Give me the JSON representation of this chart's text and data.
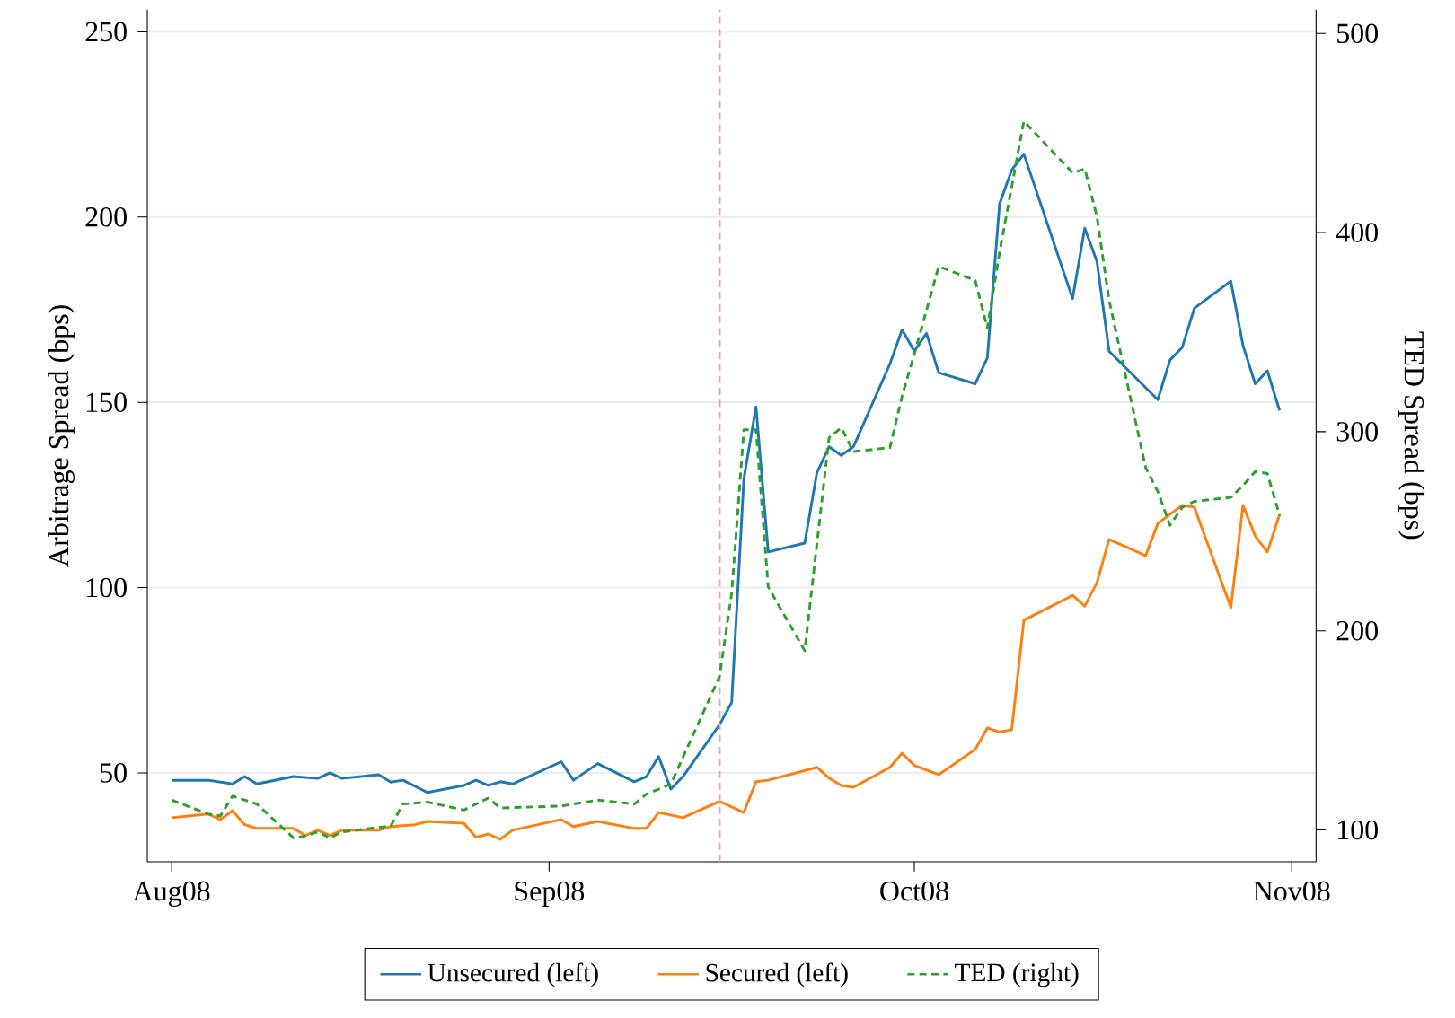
{
  "chart_data": {
    "type": "line",
    "xlim": [
      "2008-07-30",
      "2008-11-03"
    ],
    "xticks": [
      {
        "value": "2008-08-01",
        "label": "Aug08"
      },
      {
        "value": "2008-09-01",
        "label": "Sep08"
      },
      {
        "value": "2008-10-01",
        "label": "Oct08"
      },
      {
        "value": "2008-11-01",
        "label": "Nov08"
      }
    ],
    "ylim": [
      26,
      256
    ],
    "yticks": [
      50,
      100,
      150,
      200,
      250
    ],
    "y2lim": [
      84,
      512
    ],
    "y2ticks": [
      100,
      200,
      300,
      400,
      500
    ],
    "ylabel": "Arbitrage Spread (bps)",
    "y2label": "TED Spread (bps)",
    "grid": "y",
    "legend": "bottom",
    "marker": "none",
    "ref_lines": [
      {
        "axis": "x",
        "value": "2008-09-15",
        "label": null,
        "color": "#e8a0b4",
        "line_style": "dashed"
      }
    ],
    "series": [
      {
        "name": "Unsecured (left)",
        "color": "#1f77b4",
        "line_style": "solid",
        "x": [
          "2008-08-01",
          "2008-08-04",
          "2008-08-06",
          "2008-08-07",
          "2008-08-08",
          "2008-08-11",
          "2008-08-13",
          "2008-08-14",
          "2008-08-15",
          "2008-08-18",
          "2008-08-19",
          "2008-08-20",
          "2008-08-22",
          "2008-08-25",
          "2008-08-26",
          "2008-08-27",
          "2008-08-28",
          "2008-08-29",
          "2008-09-02",
          "2008-09-03",
          "2008-09-05",
          "2008-09-08",
          "2008-09-09",
          "2008-09-10",
          "2008-09-11",
          "2008-09-12",
          "2008-09-15",
          "2008-09-16",
          "2008-09-17",
          "2008-09-18",
          "2008-09-19",
          "2008-09-22",
          "2008-09-23",
          "2008-09-24",
          "2008-09-25",
          "2008-09-26",
          "2008-09-29",
          "2008-09-30",
          "2008-10-01",
          "2008-10-02",
          "2008-10-03",
          "2008-10-06",
          "2008-10-07",
          "2008-10-08",
          "2008-10-09",
          "2008-10-10",
          "2008-10-14",
          "2008-10-15",
          "2008-10-16",
          "2008-10-17",
          "2008-10-21",
          "2008-10-22",
          "2008-10-23",
          "2008-10-24",
          "2008-10-27",
          "2008-10-28",
          "2008-10-29",
          "2008-10-30",
          "2008-10-31"
        ],
        "values": [
          48,
          48,
          47,
          49,
          47,
          49,
          48.5,
          50,
          48.5,
          49.5,
          47.5,
          48,
          44.7,
          46.6,
          48,
          46.6,
          47.6,
          47,
          53,
          48,
          52.5,
          47.6,
          49,
          54.4,
          45.6,
          49,
          63,
          69,
          129.4,
          148.8,
          109.6,
          112,
          131,
          138,
          135.7,
          138,
          160.4,
          169.6,
          163.8,
          168.6,
          158,
          155,
          162,
          203.5,
          212.7,
          217,
          178,
          197,
          188,
          163.8,
          150.7,
          161.4,
          164.8,
          175.4,
          182.7,
          165.3,
          155,
          158.5,
          147.8
        ]
      },
      {
        "name": "Secured (left)",
        "color": "#ff7f0e",
        "line_style": "solid",
        "x": [
          "2008-08-01",
          "2008-08-04",
          "2008-08-05",
          "2008-08-06",
          "2008-08-07",
          "2008-08-08",
          "2008-08-11",
          "2008-08-12",
          "2008-08-13",
          "2008-08-14",
          "2008-08-15",
          "2008-08-18",
          "2008-08-19",
          "2008-08-21",
          "2008-08-22",
          "2008-08-25",
          "2008-08-26",
          "2008-08-27",
          "2008-08-28",
          "2008-08-29",
          "2008-09-02",
          "2008-09-03",
          "2008-09-05",
          "2008-09-08",
          "2008-09-09",
          "2008-09-10",
          "2008-09-12",
          "2008-09-15",
          "2008-09-16",
          "2008-09-17",
          "2008-09-18",
          "2008-09-19",
          "2008-09-23",
          "2008-09-24",
          "2008-09-25",
          "2008-09-26",
          "2008-09-29",
          "2008-09-30",
          "2008-10-01",
          "2008-10-03",
          "2008-10-06",
          "2008-10-07",
          "2008-10-08",
          "2008-10-09",
          "2008-10-10",
          "2008-10-14",
          "2008-10-15",
          "2008-10-16",
          "2008-10-17",
          "2008-10-20",
          "2008-10-21",
          "2008-10-23",
          "2008-10-24",
          "2008-10-27",
          "2008-10-28",
          "2008-10-29",
          "2008-10-30",
          "2008-10-31"
        ],
        "values": [
          37.9,
          38.9,
          37.4,
          39.8,
          36,
          35,
          35,
          33.1,
          34.5,
          33.1,
          34.5,
          34.5,
          35.5,
          36,
          36.9,
          36.4,
          32.6,
          33.5,
          32.1,
          34.5,
          37.4,
          35.5,
          36.9,
          35,
          35,
          39.3,
          37.9,
          42.3,
          40.8,
          39.3,
          47.6,
          48,
          51.5,
          48.6,
          46.6,
          46.1,
          51.5,
          55.3,
          52,
          49.5,
          56.3,
          62.1,
          61,
          61.6,
          91.2,
          97.9,
          95,
          101.3,
          113,
          108.6,
          117.3,
          122.2,
          121.7,
          94.6,
          122.2,
          113.9,
          109.6,
          119.7
        ]
      },
      {
        "name": "TED (right)",
        "color": "#2ca02c",
        "line_style": "dashed",
        "axis": "y2",
        "x": [
          "2008-08-01",
          "2008-08-04",
          "2008-08-05",
          "2008-08-06",
          "2008-08-08",
          "2008-08-11",
          "2008-08-12",
          "2008-08-13",
          "2008-08-14",
          "2008-08-15",
          "2008-08-19",
          "2008-08-20",
          "2008-08-22",
          "2008-08-25",
          "2008-08-27",
          "2008-08-28",
          "2008-09-02",
          "2008-09-05",
          "2008-09-08",
          "2008-09-09",
          "2008-09-11",
          "2008-09-15",
          "2008-09-16",
          "2008-09-17",
          "2008-09-18",
          "2008-09-19",
          "2008-09-22",
          "2008-09-24",
          "2008-09-25",
          "2008-09-26",
          "2008-09-29",
          "2008-09-30",
          "2008-10-01",
          "2008-10-03",
          "2008-10-06",
          "2008-10-07",
          "2008-10-08",
          "2008-10-10",
          "2008-10-14",
          "2008-10-15",
          "2008-10-16",
          "2008-10-17",
          "2008-10-20",
          "2008-10-21",
          "2008-10-22",
          "2008-10-23",
          "2008-10-24",
          "2008-10-27",
          "2008-10-28",
          "2008-10-29",
          "2008-10-30",
          "2008-10-31"
        ],
        "values": [
          115,
          108,
          107,
          117,
          113,
          96,
          97,
          99,
          96,
          99,
          102,
          113,
          114,
          110,
          116,
          111,
          112,
          115,
          113,
          118,
          123,
          177,
          219,
          301,
          301,
          222,
          190,
          297,
          302,
          290,
          292,
          318,
          339,
          383,
          376,
          352,
          390,
          456,
          430,
          432,
          408,
          366,
          282,
          270,
          253,
          262,
          265,
          267,
          273,
          280,
          279,
          258
        ]
      }
    ]
  }
}
